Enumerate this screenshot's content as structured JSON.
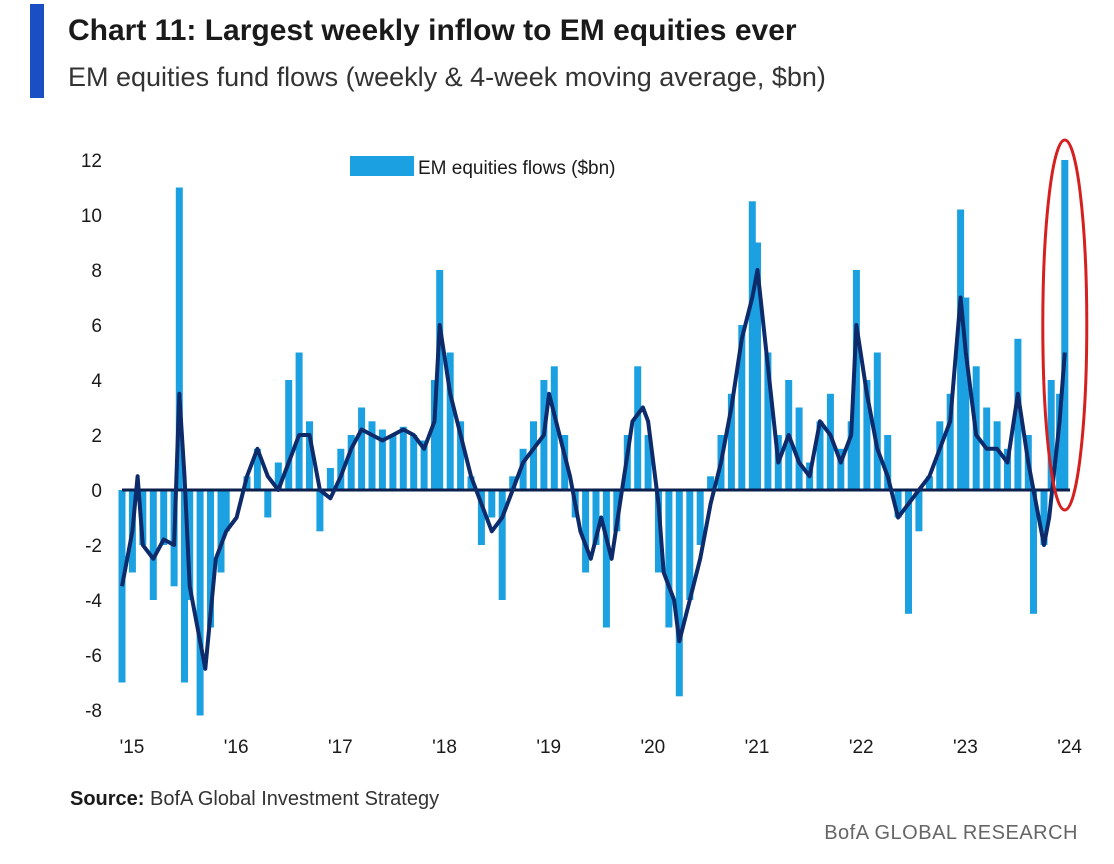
{
  "header": {
    "title": "Chart 11: Largest weekly inflow to EM equities ever",
    "subtitle": "EM equities fund flows (weekly & 4-week moving average, $bn)"
  },
  "footer": {
    "source_label": "Source:",
    "source_text": "BofA Global Investment Strategy",
    "brand": "BofA GLOBAL RESEARCH"
  },
  "colors": {
    "accent": "#1a4fc4",
    "bars": "#1ba1e2",
    "moving_average": "#0d2a6b",
    "highlight_ellipse": "#d62020"
  },
  "chart_data": {
    "type": "bar",
    "title": "Chart 11: Largest weekly inflow to EM equities ever",
    "subtitle": "EM equities fund flows (weekly & 4-week moving average, $bn)",
    "xlabel": "",
    "ylabel": "",
    "ylim": [
      -8,
      12
    ],
    "yticks": [
      12,
      10,
      8,
      6,
      4,
      2,
      0,
      -2,
      -4,
      -6,
      -8
    ],
    "ytick_labels": [
      "12",
      "10",
      "8",
      "6",
      "4",
      "2",
      "0",
      "-2",
      "-4",
      "-6",
      "-8"
    ],
    "xlim": [
      2015.0,
      2024.1
    ],
    "xticks": [
      2015,
      2016,
      2017,
      2018,
      2019,
      2020,
      2021,
      2022,
      2023,
      2024
    ],
    "xtick_labels": [
      "'15",
      "'16",
      "'17",
      "'18",
      "'19",
      "'20",
      "'21",
      "'22",
      "'23",
      "'24"
    ],
    "legend": {
      "position": "top-center",
      "entries": [
        "EM equities flows ($bn)"
      ]
    },
    "grid": false,
    "annotation": "red ellipse highlighting the latest weekly inflow (~12) in early 2024",
    "series": [
      {
        "name": "EM equities flows ($bn)",
        "style": "bars",
        "points": [
          [
            2015.0,
            -7.0
          ],
          [
            2015.1,
            -3.0
          ],
          [
            2015.2,
            -2.0
          ],
          [
            2015.3,
            -4.0
          ],
          [
            2015.4,
            -2.0
          ],
          [
            2015.5,
            -3.5
          ],
          [
            2015.55,
            11.0
          ],
          [
            2015.6,
            -7.0
          ],
          [
            2015.65,
            -4.0
          ],
          [
            2015.75,
            -8.2
          ],
          [
            2015.85,
            -5.0
          ],
          [
            2015.95,
            -3.0
          ],
          [
            2016.0,
            -1.5
          ],
          [
            2016.2,
            0.5
          ],
          [
            2016.3,
            1.5
          ],
          [
            2016.4,
            -1.0
          ],
          [
            2016.5,
            1.0
          ],
          [
            2016.6,
            4.0
          ],
          [
            2016.7,
            5.0
          ],
          [
            2016.8,
            2.5
          ],
          [
            2016.9,
            -1.5
          ],
          [
            2017.0,
            0.8
          ],
          [
            2017.1,
            1.5
          ],
          [
            2017.2,
            2.0
          ],
          [
            2017.3,
            3.0
          ],
          [
            2017.4,
            2.5
          ],
          [
            2017.5,
            2.2
          ],
          [
            2017.6,
            2.0
          ],
          [
            2017.7,
            2.3
          ],
          [
            2017.8,
            2.0
          ],
          [
            2017.9,
            1.8
          ],
          [
            2018.0,
            4.0
          ],
          [
            2018.05,
            8.0
          ],
          [
            2018.15,
            5.0
          ],
          [
            2018.25,
            2.5
          ],
          [
            2018.35,
            0.5
          ],
          [
            2018.45,
            -2.0
          ],
          [
            2018.55,
            -1.0
          ],
          [
            2018.65,
            -4.0
          ],
          [
            2018.75,
            0.5
          ],
          [
            2018.85,
            1.5
          ],
          [
            2018.95,
            2.5
          ],
          [
            2019.05,
            4.0
          ],
          [
            2019.15,
            4.5
          ],
          [
            2019.25,
            2.0
          ],
          [
            2019.35,
            -1.0
          ],
          [
            2019.45,
            -3.0
          ],
          [
            2019.55,
            -2.0
          ],
          [
            2019.65,
            -5.0
          ],
          [
            2019.75,
            -1.5
          ],
          [
            2019.85,
            2.0
          ],
          [
            2019.95,
            4.5
          ],
          [
            2020.05,
            2.0
          ],
          [
            2020.15,
            -3.0
          ],
          [
            2020.25,
            -5.0
          ],
          [
            2020.35,
            -7.5
          ],
          [
            2020.45,
            -4.0
          ],
          [
            2020.55,
            -2.0
          ],
          [
            2020.65,
            0.5
          ],
          [
            2020.75,
            2.0
          ],
          [
            2020.85,
            3.5
          ],
          [
            2020.95,
            6.0
          ],
          [
            2021.05,
            10.5
          ],
          [
            2021.1,
            9.0
          ],
          [
            2021.2,
            5.0
          ],
          [
            2021.3,
            2.0
          ],
          [
            2021.4,
            4.0
          ],
          [
            2021.5,
            3.0
          ],
          [
            2021.6,
            1.0
          ],
          [
            2021.7,
            2.5
          ],
          [
            2021.8,
            3.5
          ],
          [
            2021.9,
            1.5
          ],
          [
            2022.0,
            2.5
          ],
          [
            2022.05,
            8.0
          ],
          [
            2022.15,
            4.0
          ],
          [
            2022.25,
            5.0
          ],
          [
            2022.35,
            2.0
          ],
          [
            2022.45,
            -1.0
          ],
          [
            2022.55,
            -4.5
          ],
          [
            2022.65,
            -1.5
          ],
          [
            2022.75,
            0.5
          ],
          [
            2022.85,
            2.5
          ],
          [
            2022.95,
            3.5
          ],
          [
            2023.05,
            10.2
          ],
          [
            2023.1,
            7.0
          ],
          [
            2023.2,
            4.5
          ],
          [
            2023.3,
            3.0
          ],
          [
            2023.4,
            2.5
          ],
          [
            2023.5,
            1.5
          ],
          [
            2023.6,
            5.5
          ],
          [
            2023.7,
            2.0
          ],
          [
            2023.75,
            -4.5
          ],
          [
            2023.85,
            -2.0
          ],
          [
            2023.92,
            4.0
          ],
          [
            2024.0,
            3.5
          ],
          [
            2024.05,
            12.0
          ]
        ]
      },
      {
        "name": "",
        "style": "line",
        "points": [
          [
            2015.0,
            -3.5
          ],
          [
            2015.1,
            -1.5
          ],
          [
            2015.15,
            0.5
          ],
          [
            2015.2,
            -2.0
          ],
          [
            2015.3,
            -2.5
          ],
          [
            2015.4,
            -1.8
          ],
          [
            2015.5,
            -2.0
          ],
          [
            2015.55,
            3.5
          ],
          [
            2015.6,
            0.5
          ],
          [
            2015.65,
            -3.5
          ],
          [
            2015.75,
            -5.5
          ],
          [
            2015.8,
            -6.5
          ],
          [
            2015.9,
            -2.5
          ],
          [
            2016.0,
            -1.5
          ],
          [
            2016.1,
            -1.0
          ],
          [
            2016.2,
            0.5
          ],
          [
            2016.3,
            1.5
          ],
          [
            2016.4,
            0.5
          ],
          [
            2016.5,
            0.0
          ],
          [
            2016.6,
            1.0
          ],
          [
            2016.7,
            2.0
          ],
          [
            2016.8,
            2.0
          ],
          [
            2016.9,
            0.0
          ],
          [
            2017.0,
            -0.3
          ],
          [
            2017.1,
            0.5
          ],
          [
            2017.2,
            1.5
          ],
          [
            2017.3,
            2.2
          ],
          [
            2017.4,
            2.0
          ],
          [
            2017.5,
            1.8
          ],
          [
            2017.6,
            2.0
          ],
          [
            2017.7,
            2.2
          ],
          [
            2017.8,
            2.0
          ],
          [
            2017.9,
            1.5
          ],
          [
            2018.0,
            2.5
          ],
          [
            2018.05,
            6.0
          ],
          [
            2018.15,
            3.5
          ],
          [
            2018.25,
            2.0
          ],
          [
            2018.35,
            0.5
          ],
          [
            2018.45,
            -0.5
          ],
          [
            2018.55,
            -1.5
          ],
          [
            2018.65,
            -1.0
          ],
          [
            2018.75,
            0.0
          ],
          [
            2018.85,
            1.0
          ],
          [
            2018.95,
            1.5
          ],
          [
            2019.05,
            2.0
          ],
          [
            2019.1,
            3.5
          ],
          [
            2019.2,
            2.0
          ],
          [
            2019.3,
            0.5
          ],
          [
            2019.4,
            -1.5
          ],
          [
            2019.5,
            -2.5
          ],
          [
            2019.6,
            -1.0
          ],
          [
            2019.7,
            -2.5
          ],
          [
            2019.8,
            0.0
          ],
          [
            2019.9,
            2.5
          ],
          [
            2020.0,
            3.0
          ],
          [
            2020.05,
            2.5
          ],
          [
            2020.15,
            -0.5
          ],
          [
            2020.2,
            -3.0
          ],
          [
            2020.3,
            -4.0
          ],
          [
            2020.35,
            -5.5
          ],
          [
            2020.45,
            -4.0
          ],
          [
            2020.55,
            -2.5
          ],
          [
            2020.65,
            -0.5
          ],
          [
            2020.75,
            1.0
          ],
          [
            2020.85,
            3.0
          ],
          [
            2020.95,
            5.5
          ],
          [
            2021.05,
            7.0
          ],
          [
            2021.1,
            8.0
          ],
          [
            2021.2,
            4.5
          ],
          [
            2021.3,
            1.0
          ],
          [
            2021.4,
            2.0
          ],
          [
            2021.5,
            1.0
          ],
          [
            2021.6,
            0.5
          ],
          [
            2021.7,
            2.5
          ],
          [
            2021.8,
            2.0
          ],
          [
            2021.9,
            1.0
          ],
          [
            2022.0,
            2.0
          ],
          [
            2022.05,
            6.0
          ],
          [
            2022.15,
            3.5
          ],
          [
            2022.25,
            1.5
          ],
          [
            2022.35,
            0.5
          ],
          [
            2022.45,
            -1.0
          ],
          [
            2022.55,
            -0.5
          ],
          [
            2022.65,
            0.0
          ],
          [
            2022.75,
            0.5
          ],
          [
            2022.85,
            1.5
          ],
          [
            2022.95,
            2.5
          ],
          [
            2023.05,
            7.0
          ],
          [
            2023.1,
            5.0
          ],
          [
            2023.2,
            2.0
          ],
          [
            2023.3,
            1.5
          ],
          [
            2023.4,
            1.5
          ],
          [
            2023.5,
            1.0
          ],
          [
            2023.6,
            3.5
          ],
          [
            2023.7,
            1.0
          ],
          [
            2023.8,
            -1.0
          ],
          [
            2023.85,
            -2.0
          ],
          [
            2023.9,
            -1.0
          ],
          [
            2024.0,
            2.5
          ],
          [
            2024.05,
            5.0
          ]
        ]
      }
    ]
  }
}
